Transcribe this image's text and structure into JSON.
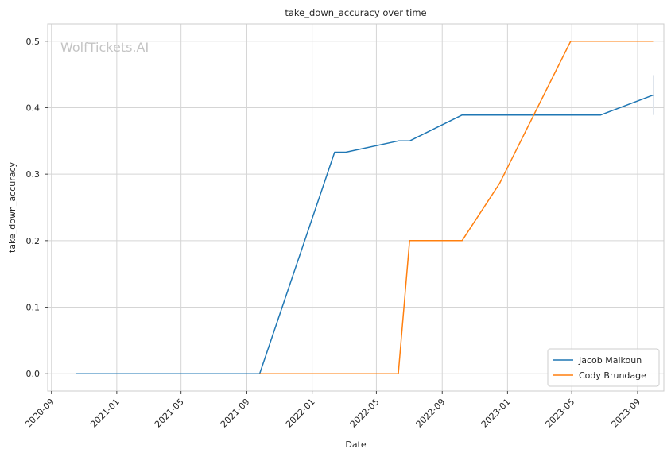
{
  "chart_data": {
    "type": "line",
    "title": "take_down_accuracy over time",
    "xlabel": "Date",
    "ylabel": "take_down_accuracy",
    "watermark": "WolfTickets.AI",
    "xlim": [
      "2020-08-25",
      "2023-10-20"
    ],
    "ylim": [
      -0.026,
      0.526
    ],
    "x_ticks": [
      "2020-09",
      "2021-01",
      "2021-05",
      "2021-09",
      "2022-01",
      "2022-05",
      "2022-09",
      "2023-01",
      "2023-05",
      "2023-09"
    ],
    "x_tick_dates": [
      "2020-09-01",
      "2021-01-01",
      "2021-05-01",
      "2021-09-01",
      "2022-01-01",
      "2022-05-01",
      "2022-09-01",
      "2023-01-01",
      "2023-05-01",
      "2023-09-01"
    ],
    "y_ticks": [
      0.0,
      0.1,
      0.2,
      0.3,
      0.4,
      0.5
    ],
    "y_tick_labels": [
      "0.0",
      "0.1",
      "0.2",
      "0.3",
      "0.4",
      "0.5"
    ],
    "grid": true,
    "legend_position": "bottom-right",
    "series": [
      {
        "name": "Jacob Malkoun",
        "color": "#1f77b4",
        "points": [
          [
            "2020-10-17",
            0.0
          ],
          [
            "2021-09-25",
            0.0
          ],
          [
            "2022-02-12",
            0.333
          ],
          [
            "2022-03-05",
            0.333
          ],
          [
            "2022-06-11",
            0.35
          ],
          [
            "2022-07-02",
            0.35
          ],
          [
            "2022-10-08",
            0.389
          ],
          [
            "2023-06-24",
            0.389
          ],
          [
            "2023-09-30",
            0.419
          ]
        ]
      },
      {
        "name": "Cody Brundage",
        "color": "#ff7f0e",
        "points": [
          [
            "2021-09-25",
            0.0
          ],
          [
            "2022-06-11",
            0.0
          ],
          [
            "2022-07-02",
            0.2
          ],
          [
            "2022-10-08",
            0.2
          ],
          [
            "2022-12-17",
            0.286
          ],
          [
            "2023-04-29",
            0.5
          ],
          [
            "2023-09-30",
            0.5
          ]
        ]
      }
    ],
    "error_bar": {
      "date": "2023-09-30",
      "low": 0.389,
      "high": 0.449,
      "color": "#dde4ec"
    }
  }
}
